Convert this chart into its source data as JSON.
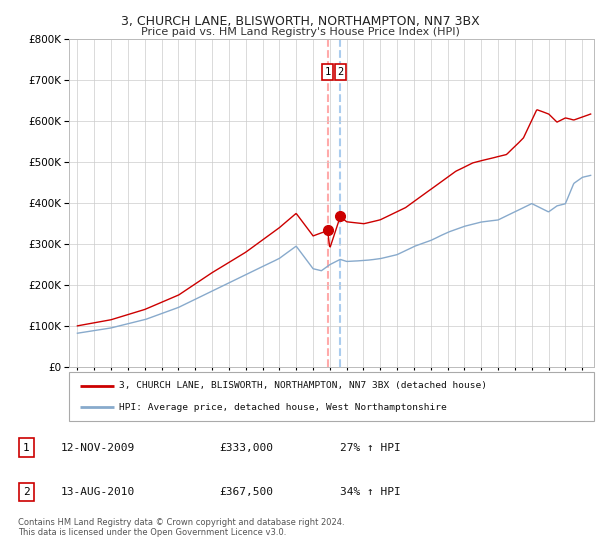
{
  "title1": "3, CHURCH LANE, BLISWORTH, NORTHAMPTON, NN7 3BX",
  "title2": "Price paid vs. HM Land Registry's House Price Index (HPI)",
  "legend_line1": "3, CHURCH LANE, BLISWORTH, NORTHAMPTON, NN7 3BX (detached house)",
  "legend_line2": "HPI: Average price, detached house, West Northamptonshire",
  "transaction1_date": "12-NOV-2009",
  "transaction1_price": "£333,000",
  "transaction1_hpi": "27% ↑ HPI",
  "transaction2_date": "13-AUG-2010",
  "transaction2_price": "£367,500",
  "transaction2_hpi": "34% ↑ HPI",
  "footnote": "Contains HM Land Registry data © Crown copyright and database right 2024.\nThis data is licensed under the Open Government Licence v3.0.",
  "red_line_color": "#cc0000",
  "blue_line_color": "#88aacc",
  "vline1_color": "#ffaaaa",
  "vline2_color": "#aaccee",
  "marker_color": "#cc0000",
  "grid_color": "#cccccc",
  "background_color": "#ffffff",
  "transaction1_x": 2009.87,
  "transaction1_y": 333000,
  "transaction2_x": 2010.62,
  "transaction2_y": 367500,
  "ylim": [
    0,
    800000
  ],
  "xlim": [
    1994.5,
    2025.7
  ]
}
